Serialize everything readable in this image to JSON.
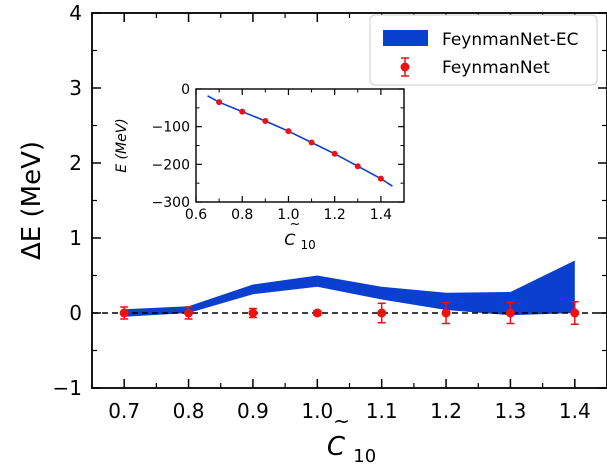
{
  "chart_data": [
    {
      "type": "line",
      "role": "main",
      "xlabel_base": "C",
      "xlabel_sub": "10",
      "ylabel": "ΔE (MeV)",
      "xlim": [
        0.65,
        1.45
      ],
      "ylim": [
        -1,
        4
      ],
      "xticks": [
        0.7,
        0.8,
        0.9,
        1.0,
        1.1,
        1.2,
        1.3,
        1.4
      ],
      "xtick_labels": [
        "0.7",
        "0.8",
        "0.9",
        "1.0",
        "1.1",
        "1.2",
        "1.3",
        "1.4"
      ],
      "yticks": [
        -1,
        0,
        1,
        2,
        3,
        4
      ],
      "ytick_labels": [
        "−1",
        "0",
        "1",
        "2",
        "3",
        "4"
      ],
      "reference_line": 0,
      "legend_position": "top-right",
      "series": [
        {
          "name": "FeynmanNet-EC",
          "kind": "band",
          "color": "#0b3fcf",
          "x": [
            0.7,
            0.8,
            0.9,
            1.0,
            1.1,
            1.2,
            1.3,
            1.4
          ],
          "lower": [
            -0.05,
            0.0,
            0.25,
            0.35,
            0.18,
            0.04,
            -0.03,
            0.0
          ],
          "upper": [
            0.05,
            0.09,
            0.38,
            0.5,
            0.35,
            0.27,
            0.28,
            0.7
          ]
        },
        {
          "name": "FeynmanNet",
          "kind": "errorbar",
          "color": "#ee1111",
          "x": [
            0.7,
            0.8,
            0.9,
            1.0,
            1.1,
            1.2,
            1.3,
            1.4
          ],
          "y": [
            0.0,
            0.0,
            0.0,
            0.0,
            0.0,
            0.0,
            0.0,
            0.0
          ],
          "err": [
            0.08,
            0.08,
            0.06,
            0.03,
            0.13,
            0.14,
            0.14,
            0.15
          ]
        }
      ]
    },
    {
      "type": "line",
      "role": "inset",
      "xlabel_base": "C",
      "xlabel_sub": "10",
      "ylabel": "E (MeV)",
      "xlim": [
        0.6,
        1.5
      ],
      "ylim": [
        -300,
        0
      ],
      "xticks": [
        0.6,
        0.8,
        1.0,
        1.2,
        1.4
      ],
      "xtick_labels": [
        "0.6",
        "0.8",
        "1.0",
        "1.2",
        "1.4"
      ],
      "yticks": [
        0,
        -100,
        -200,
        -300
      ],
      "ytick_labels": [
        "0",
        "−100",
        "−200",
        "−300"
      ],
      "series": [
        {
          "kind": "line",
          "color": "#0b3fcf",
          "x": [
            0.65,
            0.7,
            0.8,
            0.9,
            1.0,
            1.1,
            1.2,
            1.3,
            1.4,
            1.45
          ],
          "y": [
            -18,
            -35,
            -60,
            -85,
            -112,
            -142,
            -172,
            -205,
            -238,
            -258
          ]
        },
        {
          "kind": "points",
          "color": "#ee1111",
          "x": [
            0.7,
            0.8,
            0.9,
            1.0,
            1.1,
            1.2,
            1.3,
            1.4
          ],
          "y": [
            -35,
            -60,
            -85,
            -112,
            -142,
            -172,
            -205,
            -238
          ]
        }
      ]
    }
  ]
}
